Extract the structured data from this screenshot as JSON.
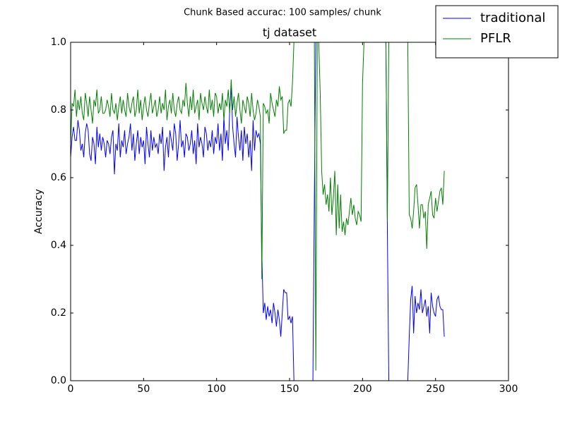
{
  "chart_data": {
    "type": "line",
    "suptitle": "Chunk Based accurac: 100 samples/ chunk",
    "title": "tj dataset",
    "y_label": "Accuracy",
    "legend": "upper right",
    "xlim": [
      0,
      300
    ],
    "xticks": [
      0,
      50,
      100,
      150,
      200,
      250,
      300
    ],
    "ylim": [
      0,
      1
    ],
    "yticks": [
      {
        "value": 0,
        "label": "0.0"
      },
      {
        "value": 0.2,
        "label": "0.2"
      },
      {
        "value": 0.4,
        "label": "0.4"
      },
      {
        "value": 0.6,
        "label": "0.6"
      },
      {
        "value": 0.8,
        "label": "0.8"
      },
      {
        "value": 1,
        "label": "1.0"
      }
    ],
    "x": [
      0,
      1,
      2,
      3,
      4,
      5,
      6,
      7,
      8,
      9,
      10,
      11,
      12,
      13,
      14,
      15,
      16,
      17,
      18,
      19,
      20,
      21,
      22,
      23,
      24,
      25,
      26,
      27,
      28,
      29,
      30,
      31,
      32,
      33,
      34,
      35,
      36,
      37,
      38,
      39,
      40,
      41,
      42,
      43,
      44,
      45,
      46,
      47,
      48,
      49,
      50,
      51,
      52,
      53,
      54,
      55,
      56,
      57,
      58,
      59,
      60,
      61,
      62,
      63,
      64,
      65,
      66,
      67,
      68,
      69,
      70,
      71,
      72,
      73,
      74,
      75,
      76,
      77,
      78,
      79,
      80,
      81,
      82,
      83,
      84,
      85,
      86,
      87,
      88,
      89,
      90,
      91,
      92,
      93,
      94,
      95,
      96,
      97,
      98,
      99,
      100,
      101,
      102,
      103,
      104,
      105,
      106,
      107,
      108,
      109,
      110,
      111,
      112,
      113,
      114,
      115,
      116,
      117,
      118,
      119,
      120,
      121,
      122,
      123,
      124,
      125,
      126,
      127,
      128,
      129,
      130,
      131,
      132,
      133,
      134,
      135,
      136,
      137,
      138,
      139,
      140,
      141,
      142,
      143,
      144,
      145,
      146,
      147,
      148,
      149,
      150,
      151,
      152,
      153,
      154,
      155,
      156,
      157,
      158,
      159,
      160,
      161,
      162,
      163,
      164,
      165,
      166,
      167,
      168,
      169,
      170,
      171,
      172,
      173,
      174,
      175,
      176,
      177,
      178,
      179,
      180,
      181,
      182,
      183,
      184,
      185,
      186,
      187,
      188,
      189,
      190,
      191,
      192,
      193,
      194,
      195,
      196,
      197,
      198,
      199,
      200,
      201,
      202,
      203,
      204,
      205,
      206,
      207,
      208,
      209,
      210,
      211,
      212,
      213,
      214,
      215,
      216,
      217,
      218,
      219,
      220,
      221,
      222,
      223,
      224,
      225,
      226,
      227,
      228,
      229,
      230,
      231,
      232,
      233,
      234,
      235,
      236,
      237,
      238,
      239,
      240,
      241,
      242,
      243,
      244,
      245,
      246,
      247,
      248,
      249,
      250,
      251,
      252,
      253,
      254,
      255,
      256
    ],
    "series": [
      {
        "name": "traditional",
        "color": "#0000ff",
        "values": [
          0.66,
          0.72,
          0.75,
          0.71,
          0.71,
          0.77,
          0.74,
          0.68,
          0.7,
          0.66,
          0.73,
          0.76,
          0.74,
          0.67,
          0.65,
          0.72,
          0.7,
          0.64,
          0.75,
          0.69,
          0.73,
          0.68,
          0.72,
          0.7,
          0.66,
          0.71,
          0.7,
          0.67,
          0.72,
          0.74,
          0.61,
          0.7,
          0.68,
          0.76,
          0.66,
          0.71,
          0.69,
          0.74,
          0.67,
          0.7,
          0.72,
          0.76,
          0.68,
          0.73,
          0.65,
          0.7,
          0.74,
          0.67,
          0.72,
          0.69,
          0.71,
          0.64,
          0.75,
          0.7,
          0.66,
          0.74,
          0.68,
          0.72,
          0.69,
          0.7,
          0.67,
          0.73,
          0.7,
          0.75,
          0.62,
          0.69,
          0.72,
          0.66,
          0.74,
          0.71,
          0.68,
          0.76,
          0.73,
          0.65,
          0.7,
          0.77,
          0.69,
          0.71,
          0.66,
          0.73,
          0.72,
          0.68,
          0.7,
          0.74,
          0.67,
          0.71,
          0.64,
          0.76,
          0.69,
          0.72,
          0.7,
          0.66,
          0.75,
          0.73,
          0.68,
          0.71,
          0.69,
          0.74,
          0.67,
          0.72,
          0.7,
          0.76,
          0.68,
          0.73,
          0.65,
          0.78,
          0.7,
          0.74,
          0.68,
          0.8,
          0.87,
          0.75,
          0.7,
          0.66,
          0.78,
          0.72,
          0.68,
          0.74,
          0.65,
          0.75,
          0.7,
          0.73,
          0.66,
          0.71,
          0.62,
          0.77,
          0.68,
          0.74,
          0.72,
          0.73,
          0.7,
          0.38,
          0.2,
          0.23,
          0.18,
          0.22,
          0.19,
          0.21,
          0.17,
          0.23,
          0.2,
          0.16,
          0.21,
          0.18,
          0.13,
          0.2,
          0.27,
          0.26,
          0.26,
          0.18,
          0.19,
          0.17,
          0.19,
          0,
          0,
          0,
          0,
          0,
          0,
          0,
          0,
          0,
          0,
          0,
          0,
          0,
          0,
          0.55,
          1,
          1,
          1,
          1,
          1,
          1,
          1,
          1,
          1,
          1,
          1,
          1,
          1,
          1,
          1,
          1,
          1,
          1,
          1,
          1,
          1,
          1,
          1,
          1,
          1,
          1,
          1,
          1,
          1,
          1,
          1,
          1,
          1,
          1,
          1,
          1,
          1,
          1,
          1,
          1,
          1,
          1,
          1,
          1,
          1,
          1,
          1,
          1,
          1,
          0.45,
          0,
          0,
          0,
          0,
          0,
          0,
          0,
          0,
          0,
          0,
          0,
          0,
          0,
          0,
          0.13,
          0.24,
          0.28,
          0.14,
          0.25,
          0.2,
          0.23,
          0.21,
          0.27,
          0.2,
          0.22,
          0.24,
          0.19,
          0.22,
          0.14,
          0.26,
          0.22,
          0.2,
          0.19,
          0.24,
          0.25,
          0.22,
          0.21,
          0.21,
          0.13
        ]
      },
      {
        "name": "PFLR",
        "color": "#008000",
        "values": [
          0.7,
          0.82,
          0.81,
          0.86,
          0.78,
          0.83,
          0.8,
          0.84,
          0.79,
          0.77,
          0.85,
          0.82,
          0.78,
          0.84,
          0.8,
          0.76,
          0.83,
          0.81,
          0.86,
          0.79,
          0.8,
          0.84,
          0.79,
          0.79,
          0.8,
          0.83,
          0.81,
          0.78,
          0.85,
          0.8,
          0.79,
          0.82,
          0.77,
          0.81,
          0.84,
          0.79,
          0.83,
          0.8,
          0.78,
          0.85,
          0.81,
          0.79,
          0.82,
          0.84,
          0.78,
          0.8,
          0.86,
          0.79,
          0.83,
          0.77,
          0.81,
          0.84,
          0.8,
          0.78,
          0.82,
          0.85,
          0.79,
          0.81,
          0.83,
          0.78,
          0.8,
          0.84,
          0.79,
          0.82,
          0.8,
          0.86,
          0.77,
          0.81,
          0.83,
          0.79,
          0.85,
          0.8,
          0.78,
          0.82,
          0.84,
          0.8,
          0.79,
          0.83,
          0.81,
          0.88,
          0.82,
          0.78,
          0.84,
          0.8,
          0.86,
          0.79,
          0.81,
          0.83,
          0.77,
          0.85,
          0.82,
          0.8,
          0.84,
          0.81,
          0.79,
          0.86,
          0.8,
          0.83,
          0.78,
          0.85,
          0.84,
          0.79,
          0.82,
          0.8,
          0.85,
          0.77,
          0.83,
          0.81,
          0.86,
          0.79,
          0.89,
          0.8,
          0.84,
          0.78,
          0.82,
          0.85,
          0.8,
          0.76,
          0.83,
          0.81,
          0.79,
          0.84,
          0.82,
          0.78,
          0.85,
          0.8,
          0.77,
          0.79,
          0.83,
          0.81,
          0.78,
          0.3,
          0.82,
          0.81,
          0.79,
          0.8,
          0.76,
          0.85,
          0.82,
          0.8,
          0.78,
          0.83,
          0.81,
          0.87,
          0.83,
          0.84,
          0.73,
          0.74,
          0.74,
          0.82,
          0.83,
          0.81,
          0.88,
          1,
          1,
          1,
          1,
          1,
          1,
          1,
          1,
          1,
          1,
          1,
          1,
          1,
          1,
          1,
          0.03,
          1,
          1,
          0.85,
          0.62,
          0.55,
          0.58,
          0.52,
          0.55,
          0.5,
          0.6,
          0.49,
          0.54,
          0.62,
          0.43,
          0.58,
          0.45,
          0.55,
          0.44,
          0.47,
          0.43,
          0.48,
          0.46,
          0.5,
          0.54,
          0.49,
          0.52,
          0.48,
          0.46,
          0.5,
          0.49,
          0.47,
          0.88,
          1,
          1,
          1,
          1,
          1,
          1,
          1,
          1,
          1,
          1,
          1,
          1,
          1,
          1,
          1,
          1,
          0.47,
          1,
          1,
          1,
          1,
          1,
          1,
          1,
          1,
          1,
          1,
          1,
          1,
          1,
          1,
          0.49,
          0.48,
          0.45,
          0.5,
          0.57,
          0.58,
          0.52,
          0.45,
          0.52,
          0.52,
          0.48,
          0.5,
          0.39,
          0.52,
          0.54,
          0.56,
          0.49,
          0.48,
          0.54,
          0.5,
          0.53,
          0.56,
          0.57,
          0.52,
          0.62
        ]
      }
    ]
  }
}
